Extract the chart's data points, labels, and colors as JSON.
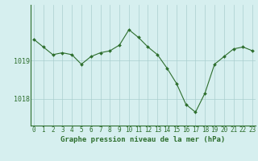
{
  "x": [
    0,
    1,
    2,
    3,
    4,
    5,
    6,
    7,
    8,
    9,
    10,
    11,
    12,
    13,
    14,
    15,
    16,
    17,
    18,
    19,
    20,
    21,
    22,
    23
  ],
  "y": [
    1019.55,
    1019.35,
    1019.15,
    1019.2,
    1019.15,
    1018.9,
    1019.1,
    1019.2,
    1019.25,
    1019.4,
    1019.8,
    1019.6,
    1019.35,
    1019.15,
    1018.8,
    1018.4,
    1017.85,
    1017.65,
    1018.15,
    1018.9,
    1019.1,
    1019.3,
    1019.35,
    1019.25
  ],
  "line_color": "#2d6e2d",
  "marker_color": "#2d6e2d",
  "bg_color": "#d6efef",
  "grid_color": "#aacece",
  "axis_color": "#2d6e2d",
  "label_color": "#2d6e2d",
  "title": "Graphe pression niveau de la mer (hPa)",
  "ylim_min": 1017.3,
  "ylim_max": 1020.45,
  "yticks": [
    1018,
    1019
  ],
  "xtick_labels": [
    "0",
    "1",
    "2",
    "3",
    "4",
    "5",
    "6",
    "7",
    "8",
    "9",
    "10",
    "11",
    "12",
    "13",
    "14",
    "15",
    "16",
    "17",
    "18",
    "19",
    "20",
    "21",
    "22",
    "23"
  ],
  "title_fontsize": 6.5,
  "tick_fontsize": 5.5,
  "ytick_fontsize": 6.0
}
